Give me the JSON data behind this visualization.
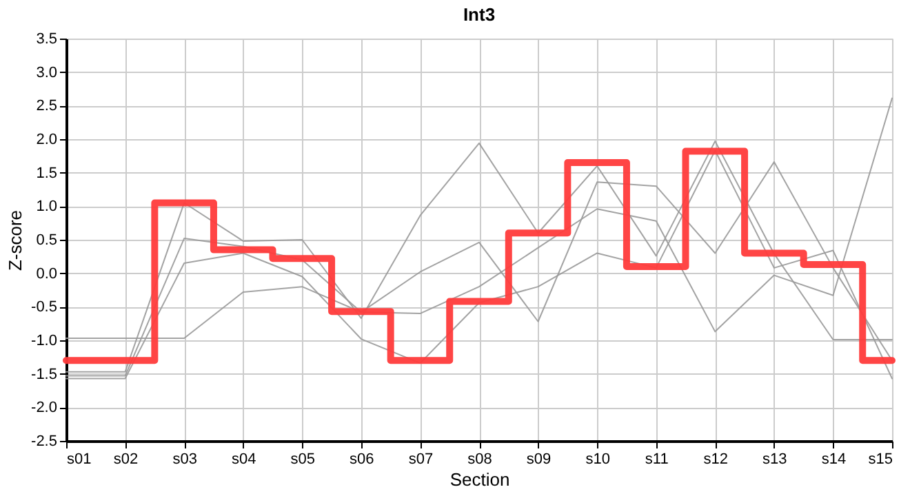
{
  "chart_data": {
    "type": "line",
    "title": "Int3",
    "xlabel": "Section",
    "ylabel": "Z-score",
    "categories": [
      "s01",
      "s02",
      "s03",
      "s04",
      "s05",
      "s06",
      "s07",
      "s08",
      "s09",
      "s10",
      "s11",
      "s12",
      "s13",
      "s14",
      "s15"
    ],
    "series": [
      {
        "color": "#999999",
        "values": [
          -0.97,
          -0.97,
          -0.97,
          -0.28,
          -0.2,
          -0.58,
          -0.6,
          -0.2,
          0.38,
          0.96,
          0.78,
          -0.87,
          -0.03,
          -0.33,
          2.61
        ]
      },
      {
        "color": "#999999",
        "values": [
          -1.47,
          -1.47,
          1.05,
          0.48,
          0.5,
          -0.67,
          0.86,
          1.94,
          0.6,
          1.6,
          0.26,
          1.97,
          0.29,
          -0.99,
          -0.99
        ]
      },
      {
        "color": "#999999",
        "values": [
          -1.53,
          -1.53,
          0.52,
          0.4,
          0.2,
          -0.58,
          0.02,
          0.46,
          -0.72,
          1.36,
          1.3,
          0.3,
          1.66,
          0.08,
          -1.3
        ]
      },
      {
        "color": "#999999",
        "values": [
          -1.57,
          -1.57,
          0.15,
          0.3,
          -0.05,
          -0.98,
          -1.34,
          -0.44,
          -0.2,
          0.3,
          0.08,
          1.83,
          0.08,
          0.34,
          -1.57
        ]
      },
      {
        "type": "step",
        "color": "#ff3b3b",
        "values": [
          -1.3,
          -1.3,
          1.05,
          0.35,
          0.22,
          -0.57,
          -1.3,
          -0.42,
          0.6,
          1.65,
          0.1,
          1.82,
          0.3,
          0.13,
          -1.3
        ]
      }
    ],
    "ylim": [
      -2.5,
      3.5
    ],
    "yticks": [
      {
        "value": -2.5,
        "label": "-2.5"
      },
      {
        "value": -2,
        "label": "-2.0"
      },
      {
        "value": -1.5,
        "label": "-1.5"
      },
      {
        "value": -1,
        "label": "-1.0"
      },
      {
        "value": -0.5,
        "label": "-0.5"
      },
      {
        "value": 0,
        "label": "0.0"
      },
      0.5,
      {
        "value": 1,
        "label": "1.0"
      },
      1.5,
      {
        "value": 2,
        "label": "2.0"
      },
      2.5,
      {
        "value": 3,
        "label": "3.0"
      },
      3.5
    ],
    "grid": true
  }
}
